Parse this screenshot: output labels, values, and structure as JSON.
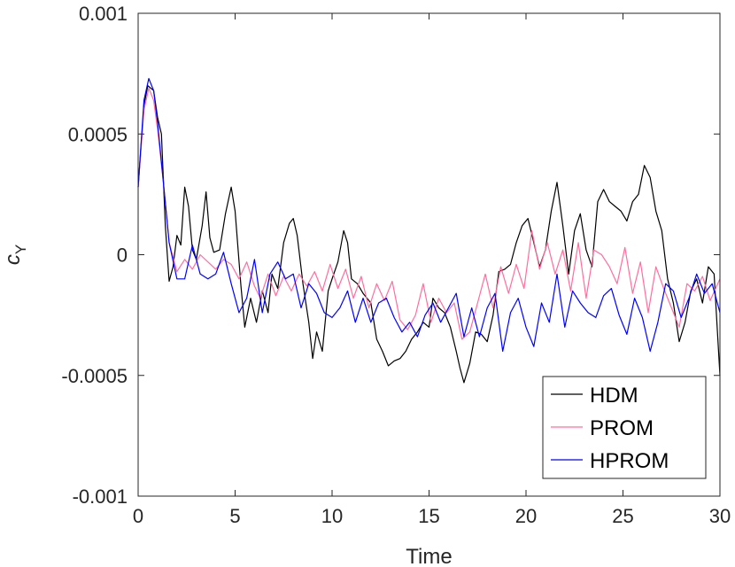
{
  "chart_data": {
    "type": "line",
    "xlabel": "Time",
    "ylabel": "c",
    "ylabel_sub": "Y",
    "xlim": [
      0,
      30
    ],
    "ylim": [
      -0.001,
      0.001
    ],
    "grid": false,
    "legend_position": "bottom-right",
    "x_ticks": [
      {
        "value": 0,
        "label": "0"
      },
      {
        "value": 5,
        "label": "5"
      },
      {
        "value": 10,
        "label": "10"
      },
      {
        "value": 15,
        "label": "15"
      },
      {
        "value": 20,
        "label": "20"
      },
      {
        "value": 25,
        "label": "25"
      },
      {
        "value": 30,
        "label": "30"
      }
    ],
    "y_ticks": [
      {
        "value": 0.001,
        "label": "0.001"
      },
      {
        "value": 0.0005,
        "label": "0.0005"
      },
      {
        "value": 0,
        "label": "0"
      },
      {
        "value": -0.0005,
        "label": "-0.0005"
      },
      {
        "value": -0.001,
        "label": "-0.001"
      }
    ],
    "series": [
      {
        "name": "HDM",
        "color": "#000000",
        "points": [
          [
            0,
            0.00028
          ],
          [
            0.3,
            0.00062
          ],
          [
            0.5,
            0.0007
          ],
          [
            0.8,
            0.00068
          ],
          [
            1.0,
            0.00057
          ],
          [
            1.2,
            0.0005
          ],
          [
            1.4,
            0.00012
          ],
          [
            1.6,
            -0.00011
          ],
          [
            1.8,
            -5e-05
          ],
          [
            2.0,
            8e-05
          ],
          [
            2.2,
            4e-05
          ],
          [
            2.4,
            0.00028
          ],
          [
            2.6,
            0.0002
          ],
          [
            2.8,
            2e-05
          ],
          [
            3.0,
            -2e-05
          ],
          [
            3.3,
            0.00012
          ],
          [
            3.5,
            0.00026
          ],
          [
            3.7,
            7e-05
          ],
          [
            3.9,
            1e-05
          ],
          [
            4.2,
            2e-05
          ],
          [
            4.5,
            0.00017
          ],
          [
            4.8,
            0.00028
          ],
          [
            5.0,
            0.00018
          ],
          [
            5.3,
            -0.00013
          ],
          [
            5.5,
            -0.0003
          ],
          [
            5.8,
            -0.00018
          ],
          [
            6.1,
            -0.00028
          ],
          [
            6.4,
            -0.00015
          ],
          [
            6.7,
            -0.00024
          ],
          [
            6.9,
            -8e-05
          ],
          [
            7.2,
            -0.00014
          ],
          [
            7.5,
            5e-05
          ],
          [
            7.8,
            0.00013
          ],
          [
            8.0,
            0.00015
          ],
          [
            8.2,
            8e-05
          ],
          [
            8.5,
            -0.00012
          ],
          [
            8.8,
            -0.00028
          ],
          [
            9.0,
            -0.00043
          ],
          [
            9.2,
            -0.00032
          ],
          [
            9.5,
            -0.0004
          ],
          [
            9.8,
            -0.00015
          ],
          [
            10.0,
            -0.0001
          ],
          [
            10.3,
            -3e-05
          ],
          [
            10.6,
            0.0001
          ],
          [
            10.8,
            5e-05
          ],
          [
            11.0,
            -0.0001
          ],
          [
            11.3,
            -0.00012
          ],
          [
            11.6,
            -0.00016
          ],
          [
            12.0,
            -0.0002
          ],
          [
            12.3,
            -0.00035
          ],
          [
            12.6,
            -0.0004
          ],
          [
            12.9,
            -0.00046
          ],
          [
            13.2,
            -0.00044
          ],
          [
            13.5,
            -0.00043
          ],
          [
            13.8,
            -0.0004
          ],
          [
            14.1,
            -0.00035
          ],
          [
            14.4,
            -0.00032
          ],
          [
            14.7,
            -0.00028
          ],
          [
            15.0,
            -0.0003
          ],
          [
            15.2,
            -0.00018
          ],
          [
            15.5,
            -0.00022
          ],
          [
            15.8,
            -0.00024
          ],
          [
            16.1,
            -0.0003
          ],
          [
            16.4,
            -0.0004
          ],
          [
            16.6,
            -0.00047
          ],
          [
            16.8,
            -0.00053
          ],
          [
            17.1,
            -0.00045
          ],
          [
            17.4,
            -0.00032
          ],
          [
            17.7,
            -0.00033
          ],
          [
            18.0,
            -0.00036
          ],
          [
            18.3,
            -0.00025
          ],
          [
            18.6,
            -7e-05
          ],
          [
            18.9,
            -6e-05
          ],
          [
            19.2,
            -4e-05
          ],
          [
            19.5,
            5e-05
          ],
          [
            19.8,
            0.00012
          ],
          [
            20.1,
            0.00015
          ],
          [
            20.4,
            5e-05
          ],
          [
            20.7,
            -5e-05
          ],
          [
            21.0,
            2e-05
          ],
          [
            21.3,
            0.00018
          ],
          [
            21.6,
            0.0003
          ],
          [
            21.9,
            0.00012
          ],
          [
            22.2,
            -8e-05
          ],
          [
            22.5,
            0.0001
          ],
          [
            22.8,
            0.00017
          ],
          [
            23.1,
            2e-05
          ],
          [
            23.4,
            -5e-05
          ],
          [
            23.7,
            0.00022
          ],
          [
            24.0,
            0.00027
          ],
          [
            24.3,
            0.00022
          ],
          [
            24.6,
            0.0002
          ],
          [
            24.9,
            0.00018
          ],
          [
            25.2,
            0.00014
          ],
          [
            25.5,
            0.00022
          ],
          [
            25.8,
            0.00025
          ],
          [
            26.1,
            0.00037
          ],
          [
            26.4,
            0.00032
          ],
          [
            26.7,
            0.00018
          ],
          [
            27.0,
            0.0001
          ],
          [
            27.3,
            -0.0001
          ],
          [
            27.6,
            -0.0002
          ],
          [
            27.9,
            -0.00036
          ],
          [
            28.2,
            -0.00028
          ],
          [
            28.5,
            -0.00015
          ],
          [
            28.8,
            -0.0001
          ],
          [
            29.1,
            -0.0002
          ],
          [
            29.4,
            -5e-05
          ],
          [
            29.7,
            -8e-05
          ],
          [
            30.0,
            -0.0005
          ]
        ]
      },
      {
        "name": "PROM",
        "color": "#ff6ea0",
        "points": [
          [
            0,
            0.00028
          ],
          [
            0.3,
            0.0006
          ],
          [
            0.55,
            0.00069
          ],
          [
            0.8,
            0.00064
          ],
          [
            1.0,
            0.00052
          ],
          [
            1.3,
            0.0003
          ],
          [
            1.6,
            5e-05
          ],
          [
            2.0,
            -7e-05
          ],
          [
            2.4,
            -2e-05
          ],
          [
            2.8,
            -6e-05
          ],
          [
            3.2,
            0.0
          ],
          [
            3.6,
            -3e-05
          ],
          [
            4.0,
            -6e-05
          ],
          [
            4.4,
            -2e-05
          ],
          [
            4.8,
            -4e-05
          ],
          [
            5.2,
            -0.0001
          ],
          [
            5.6,
            -3e-05
          ],
          [
            6.0,
            -0.00013
          ],
          [
            6.3,
            -0.00018
          ],
          [
            6.7,
            -8e-05
          ],
          [
            7.1,
            -0.00017
          ],
          [
            7.5,
            -9e-05
          ],
          [
            7.9,
            -0.00015
          ],
          [
            8.3,
            -8e-05
          ],
          [
            8.7,
            -0.00013
          ],
          [
            9.1,
            -7e-05
          ],
          [
            9.5,
            -0.00015
          ],
          [
            9.9,
            -4e-05
          ],
          [
            10.3,
            -0.00014
          ],
          [
            10.7,
            -6e-05
          ],
          [
            11.1,
            -0.00018
          ],
          [
            11.5,
            -9e-05
          ],
          [
            11.9,
            -0.00022
          ],
          [
            12.3,
            -0.00012
          ],
          [
            12.7,
            -0.00019
          ],
          [
            13.1,
            -0.00011
          ],
          [
            13.5,
            -0.00027
          ],
          [
            13.9,
            -0.00031
          ],
          [
            14.3,
            -0.00025
          ],
          [
            14.7,
            -0.00012
          ],
          [
            15.1,
            -0.00028
          ],
          [
            15.5,
            -0.00018
          ],
          [
            15.9,
            -0.00024
          ],
          [
            16.3,
            -0.0002
          ],
          [
            16.7,
            -0.00035
          ],
          [
            17.1,
            -0.00032
          ],
          [
            17.5,
            -0.0002
          ],
          [
            17.9,
            -8e-05
          ],
          [
            18.3,
            -0.00022
          ],
          [
            18.7,
            -5e-05
          ],
          [
            19.1,
            -0.00016
          ],
          [
            19.5,
            -4e-05
          ],
          [
            19.9,
            -0.00014
          ],
          [
            20.3,
            0.0001
          ],
          [
            20.7,
            -6e-05
          ],
          [
            21.1,
            5e-05
          ],
          [
            21.5,
            -8e-05
          ],
          [
            21.9,
            2e-05
          ],
          [
            22.3,
            -0.00015
          ],
          [
            22.7,
            5e-05
          ],
          [
            23.1,
            -0.00018
          ],
          [
            23.5,
            2e-05
          ],
          [
            23.9,
            0.0
          ],
          [
            24.3,
            -5e-05
          ],
          [
            24.7,
            -0.00012
          ],
          [
            25.1,
            3e-05
          ],
          [
            25.5,
            -0.00016
          ],
          [
            25.9,
            -3e-05
          ],
          [
            26.3,
            -0.00024
          ],
          [
            26.7,
            -5e-05
          ],
          [
            27.1,
            -0.00014
          ],
          [
            27.5,
            -0.00022
          ],
          [
            27.9,
            -0.0003
          ],
          [
            28.3,
            -0.00012
          ],
          [
            28.7,
            -0.00015
          ],
          [
            29.1,
            -9e-05
          ],
          [
            29.5,
            -0.00019
          ],
          [
            30.0,
            -0.0001
          ]
        ]
      },
      {
        "name": "HPROM",
        "color": "#0000ff",
        "points": [
          [
            0,
            0.00028
          ],
          [
            0.3,
            0.00064
          ],
          [
            0.55,
            0.00073
          ],
          [
            0.8,
            0.00068
          ],
          [
            1.0,
            0.00055
          ],
          [
            1.3,
            0.0003
          ],
          [
            1.6,
            5e-05
          ],
          [
            2.0,
            -0.0001
          ],
          [
            2.4,
            -0.0001
          ],
          [
            2.8,
            4e-05
          ],
          [
            3.2,
            -8e-05
          ],
          [
            3.6,
            -0.0001
          ],
          [
            4.0,
            -8e-05
          ],
          [
            4.4,
            1e-05
          ],
          [
            4.8,
            -0.00012
          ],
          [
            5.2,
            -0.00024
          ],
          [
            5.6,
            -0.00018
          ],
          [
            6.0,
            -2e-05
          ],
          [
            6.4,
            -0.00024
          ],
          [
            6.8,
            -8e-05
          ],
          [
            7.2,
            -3e-05
          ],
          [
            7.6,
            -0.0001
          ],
          [
            8.0,
            -8e-05
          ],
          [
            8.4,
            -0.00022
          ],
          [
            8.8,
            -0.00012
          ],
          [
            9.2,
            -0.00016
          ],
          [
            9.6,
            -0.00024
          ],
          [
            10.0,
            -0.00026
          ],
          [
            10.4,
            -0.00022
          ],
          [
            10.8,
            -0.00015
          ],
          [
            11.2,
            -0.00028
          ],
          [
            11.6,
            -0.00018
          ],
          [
            12.0,
            -0.00028
          ],
          [
            12.4,
            -0.0002
          ],
          [
            12.8,
            -0.00018
          ],
          [
            13.2,
            -0.00026
          ],
          [
            13.6,
            -0.00032
          ],
          [
            14.0,
            -0.00028
          ],
          [
            14.4,
            -0.00034
          ],
          [
            14.8,
            -0.00025
          ],
          [
            15.2,
            -0.0002
          ],
          [
            15.6,
            -0.00028
          ],
          [
            16.0,
            -0.00022
          ],
          [
            16.4,
            -0.00016
          ],
          [
            16.8,
            -0.00034
          ],
          [
            17.2,
            -0.00022
          ],
          [
            17.6,
            -0.00034
          ],
          [
            18.0,
            -0.00022
          ],
          [
            18.4,
            -0.00016
          ],
          [
            18.8,
            -0.0004
          ],
          [
            19.2,
            -0.00024
          ],
          [
            19.6,
            -0.00018
          ],
          [
            20.0,
            -0.0003
          ],
          [
            20.4,
            -0.00038
          ],
          [
            20.8,
            -0.0002
          ],
          [
            21.2,
            -0.00028
          ],
          [
            21.6,
            -8e-05
          ],
          [
            22.0,
            -0.0003
          ],
          [
            22.4,
            -0.00015
          ],
          [
            22.8,
            -0.0002
          ],
          [
            23.2,
            -0.00024
          ],
          [
            23.6,
            -0.00026
          ],
          [
            24.0,
            -0.00017
          ],
          [
            24.4,
            -0.00014
          ],
          [
            24.8,
            -0.00025
          ],
          [
            25.2,
            -0.00033
          ],
          [
            25.6,
            -0.00018
          ],
          [
            26.0,
            -0.00026
          ],
          [
            26.4,
            -0.0004
          ],
          [
            26.8,
            -0.00028
          ],
          [
            27.2,
            -0.00012
          ],
          [
            27.6,
            -0.00015
          ],
          [
            28.0,
            -0.00026
          ],
          [
            28.4,
            -0.00018
          ],
          [
            28.8,
            -8e-05
          ],
          [
            29.2,
            -0.00016
          ],
          [
            29.6,
            -0.00012
          ],
          [
            30.0,
            -0.00024
          ]
        ]
      }
    ]
  }
}
